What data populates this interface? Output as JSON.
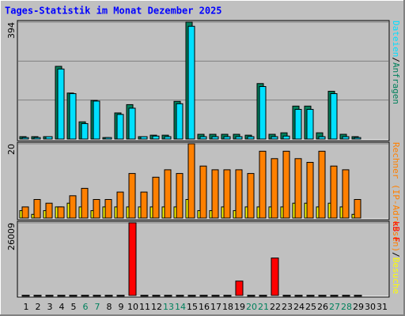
{
  "chart_data": {
    "type": "bar",
    "title": "Tages-Statistik im Monat Dezember 2025",
    "categories": [
      "1",
      "2",
      "3",
      "4",
      "5",
      "6",
      "7",
      "8",
      "9",
      "10",
      "11",
      "12",
      "13",
      "14",
      "15",
      "16",
      "17",
      "18",
      "19",
      "20",
      "21",
      "22",
      "23",
      "24",
      "25",
      "26",
      "27",
      "28",
      "29",
      "30",
      "31"
    ],
    "weekend": [
      5,
      6,
      12,
      13,
      19,
      20,
      26,
      27
    ],
    "weekend_color": "#00805c",
    "panels": [
      {
        "ylim": [
          0,
          394
        ],
        "yticks": [
          394
        ],
        "series": [
          {
            "name": "Anfragen",
            "color": "#00805c",
            "values": [
              8,
              8,
              8,
              245,
              155,
              58,
              130,
              5,
              88,
              116,
              8,
              13,
              13,
              127,
              394,
              16,
              16,
              16,
              16,
              13,
              187,
              16,
              21,
              111,
              111,
              21,
              161,
              16,
              8,
              null,
              null
            ]
          },
          {
            "name": "Dateien",
            "color": "#00e0ff",
            "values": [
              5,
              5,
              8,
              236,
              153,
              52,
              128,
              5,
              83,
              104,
              8,
              10,
              8,
              119,
              380,
              8,
              8,
              8,
              8,
              8,
              177,
              8,
              10,
              100,
              100,
              8,
              153,
              8,
              5,
              null,
              null
            ]
          }
        ]
      },
      {
        "ylim": [
          0,
          20
        ],
        "yticks": [
          20
        ],
        "series": [
          {
            "name": "Besuche",
            "color": "#ffff00",
            "values": [
              2,
              1,
              2,
              3,
              4,
              3,
              2,
              3,
              3,
              3,
              3,
              3,
              3,
              3,
              5,
              2,
              2,
              3,
              2,
              3,
              3,
              3,
              3,
              4,
              4,
              3,
              4,
              3,
              1,
              null,
              null
            ]
          },
          {
            "name": "Rechner (IP-Adressen)",
            "color": "#ff8000",
            "values": [
              3,
              5,
              4,
              3,
              6,
              8,
              5,
              5,
              7,
              12,
              7,
              11,
              13,
              12,
              20,
              14,
              13,
              13,
              13,
              12,
              18,
              16,
              18,
              16,
              15,
              18,
              14,
              13,
              5,
              null,
              null
            ]
          }
        ]
      },
      {
        "ylim": [
          0,
          26009
        ],
        "yticks": [
          26009
        ],
        "series": [
          {
            "name": "kB F",
            "color": "#ff0000",
            "values": [
              60,
              60,
              60,
              60,
              60,
              60,
              60,
              60,
              60,
              26009,
              60,
              60,
              60,
              60,
              60,
              60,
              60,
              60,
              5150,
              60,
              60,
              13400,
              60,
              60,
              60,
              60,
              60,
              60,
              60,
              null,
              null
            ]
          }
        ]
      }
    ]
  }
}
